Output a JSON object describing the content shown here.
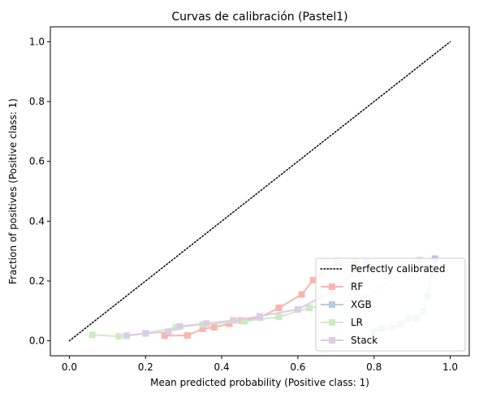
{
  "chart_data": {
    "type": "line",
    "title": "Curvas de calibración (Pastel1)",
    "xlabel": "Mean predicted probability (Positive class: 1)",
    "ylabel": "Fraction of positives (Positive class: 1)",
    "xlim": [
      -0.05,
      1.05
    ],
    "ylim": [
      -0.05,
      1.05
    ],
    "xticks": [
      "0.0",
      "0.2",
      "0.4",
      "0.6",
      "0.8",
      "1.0"
    ],
    "yticks": [
      "0.0",
      "0.2",
      "0.4",
      "0.6",
      "0.8",
      "1.0"
    ],
    "grid": false,
    "legend_position": "lower-right",
    "reference": {
      "name": "Perfectly calibrated",
      "x": [
        0,
        1
      ],
      "y": [
        0,
        1
      ],
      "color": "#000000",
      "style": "dotted"
    },
    "series": [
      {
        "name": "RF",
        "color": "#fbb4ae",
        "x": [
          0.25,
          0.31,
          0.35,
          0.38,
          0.42,
          0.45,
          0.5,
          0.55,
          0.61,
          0.64,
          0.7,
          0.75
        ],
        "y": [
          0.017,
          0.018,
          0.04,
          0.045,
          0.057,
          0.068,
          0.078,
          0.11,
          0.155,
          0.203,
          0.26,
          0.265
        ]
      },
      {
        "name": "XGB",
        "color": "#b3cde3",
        "x": [
          0.8,
          0.82,
          0.85,
          0.87,
          0.89,
          0.91,
          0.93,
          0.94,
          0.96
        ],
        "y": [
          0.03,
          0.04,
          0.045,
          0.055,
          0.075,
          0.075,
          0.1,
          0.15,
          0.275
        ]
      },
      {
        "name": "LR",
        "color": "#ccebc5",
        "x": [
          0.06,
          0.13,
          0.2,
          0.28,
          0.35,
          0.46,
          0.55,
          0.63,
          0.78,
          0.92
        ],
        "y": [
          0.02,
          0.015,
          0.025,
          0.045,
          0.055,
          0.065,
          0.08,
          0.11,
          0.145,
          0.27
        ]
      },
      {
        "name": "Stack",
        "color": "#decbe4",
        "x": [
          0.15,
          0.2,
          0.26,
          0.29,
          0.36,
          0.43,
          0.5,
          0.6,
          0.69,
          0.78
        ],
        "y": [
          0.017,
          0.025,
          0.03,
          0.048,
          0.058,
          0.068,
          0.082,
          0.105,
          0.165,
          0.265
        ]
      }
    ]
  }
}
